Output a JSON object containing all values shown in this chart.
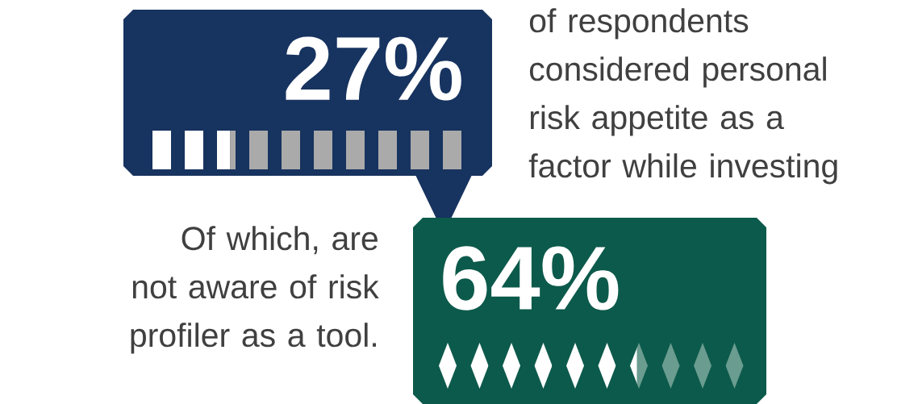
{
  "chart_data": [
    {
      "type": "other",
      "values": [
        27
      ],
      "value_labels": [
        "27%"
      ],
      "color": "#17335f",
      "annotations": [
        "of respondents considered personal risk appetite as a factor while investing"
      ]
    },
    {
      "type": "other",
      "values": [
        64
      ],
      "value_labels": [
        "64%"
      ],
      "color": "#0c5a4b",
      "annotations": [
        "Of which, are not aware of risk profiler as a tool."
      ]
    }
  ]
}
